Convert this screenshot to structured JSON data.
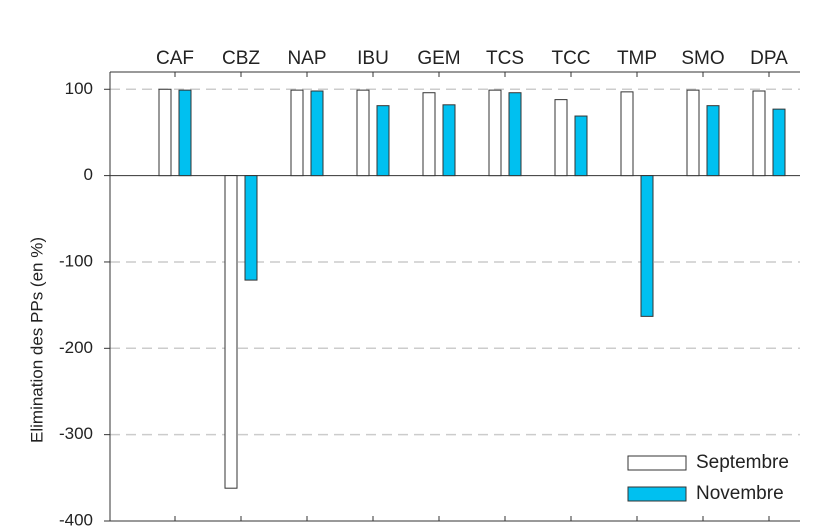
{
  "chart_data": {
    "type": "bar",
    "y_label": "Elimination des PPs (en %)",
    "categories": [
      "CAF",
      "CBZ",
      "NAP",
      "IBU",
      "GEM",
      "TCS",
      "TCC",
      "TMP",
      "SMO",
      "DPA"
    ],
    "series": [
      {
        "name": "Septembre",
        "color": "#ffffff",
        "values": [
          100,
          -362,
          99,
          99,
          96,
          99,
          88,
          97,
          99,
          98
        ]
      },
      {
        "name": "Novembre",
        "color": "#00c0f0",
        "values": [
          99,
          -121,
          98,
          81,
          82,
          96,
          69,
          -163,
          81,
          77
        ]
      }
    ],
    "ylim": [
      -400,
      120
    ],
    "yticks": [
      -400,
      -300,
      -200,
      -100,
      0,
      100
    ],
    "grid": true,
    "legend": "lower right"
  }
}
